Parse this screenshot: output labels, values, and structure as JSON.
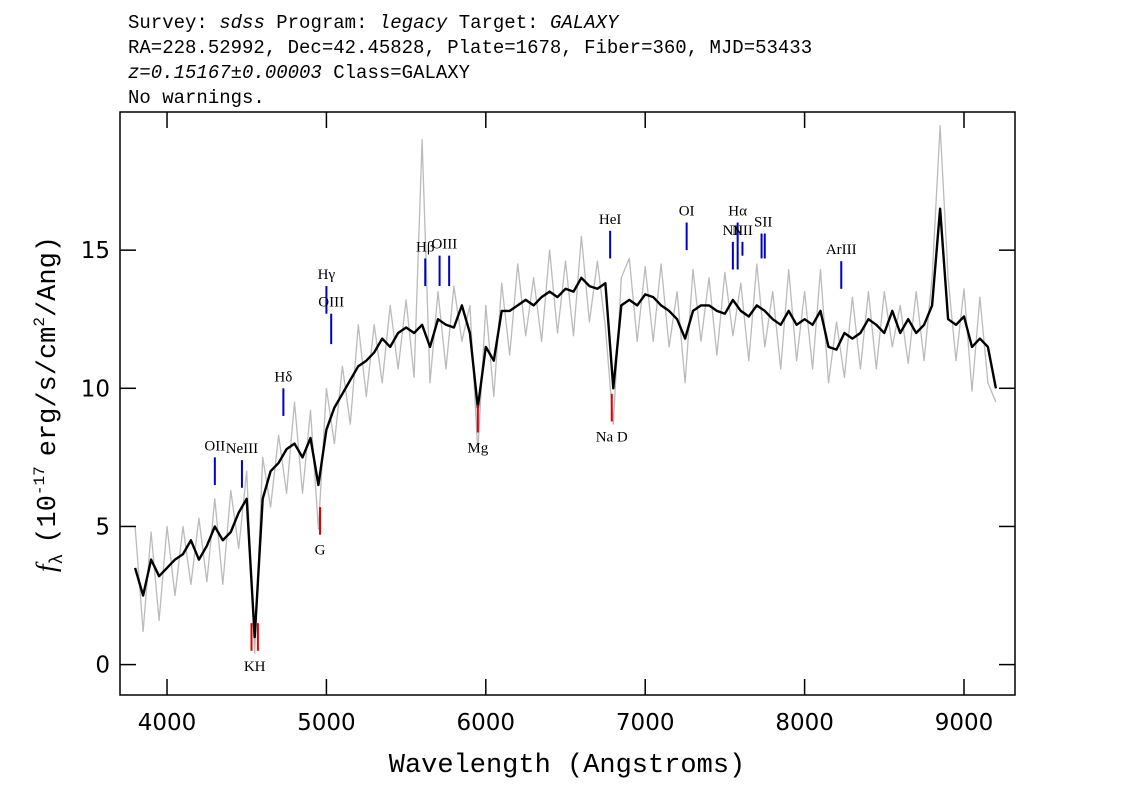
{
  "chart_data": {
    "type": "line",
    "header": {
      "line1": [
        "Survey:",
        "sdss",
        "Program:",
        "legacy",
        "Target:",
        "GALAXY"
      ],
      "line2": "RA=228.52992, Dec=42.45828, Plate=1678, Fiber=360, MJD=53433",
      "line3": [
        "z=0.15167±0.00003",
        "Class=GALAXY"
      ],
      "line4": "No warnings."
    },
    "xlabel": "Wavelength (Angstroms)",
    "ylabel": [
      "f",
      "λ",
      "(10",
      "-17",
      "erg/s/cm",
      "2",
      "/Ang)"
    ],
    "xlim": [
      3705,
      9320
    ],
    "ylim": [
      -1.1,
      20
    ],
    "xticks": [
      4000,
      5000,
      6000,
      7000,
      8000,
      9000
    ],
    "yticks": [
      0,
      5,
      10,
      15
    ],
    "x": [
      3800,
      3850,
      3900,
      3950,
      4000,
      4050,
      4100,
      4150,
      4200,
      4250,
      4300,
      4350,
      4400,
      4450,
      4500,
      4550,
      4600,
      4650,
      4700,
      4750,
      4800,
      4850,
      4900,
      4950,
      5000,
      5050,
      5100,
      5150,
      5200,
      5250,
      5300,
      5350,
      5400,
      5450,
      5500,
      5550,
      5600,
      5650,
      5700,
      5750,
      5800,
      5850,
      5900,
      5950,
      6000,
      6050,
      6100,
      6150,
      6200,
      6250,
      6300,
      6350,
      6400,
      6450,
      6500,
      6550,
      6600,
      6650,
      6700,
      6750,
      6800,
      6850,
      6900,
      6950,
      7000,
      7050,
      7100,
      7150,
      7200,
      7250,
      7300,
      7350,
      7400,
      7450,
      7500,
      7550,
      7600,
      7650,
      7700,
      7750,
      7800,
      7850,
      7900,
      7950,
      8000,
      8050,
      8100,
      8150,
      8200,
      8250,
      8300,
      8350,
      8400,
      8450,
      8500,
      8550,
      8600,
      8650,
      8700,
      8750,
      8800,
      8850,
      8900,
      8950,
      9000,
      9050,
      9100,
      9150,
      9200
    ],
    "series": [
      {
        "name": "raw",
        "color": "#bbbbbb",
        "values": [
          5.0,
          1.2,
          4.8,
          1.6,
          5.0,
          2.5,
          5.0,
          2.9,
          5.3,
          3.0,
          6.0,
          2.9,
          6.3,
          4.2,
          7.0,
          0.4,
          7.5,
          5.7,
          8.3,
          6.2,
          9.5,
          6.2,
          9.2,
          4.9,
          10.0,
          8.0,
          10.8,
          8.7,
          12.3,
          9.7,
          12.3,
          10.2,
          13.0,
          10.7,
          13.2,
          10.4,
          19.0,
          10.2,
          13.5,
          10.7,
          13.7,
          11.7,
          13.0,
          7.7,
          13.0,
          9.7,
          13.8,
          11.2,
          14.5,
          11.9,
          14.0,
          11.7,
          15.0,
          12.0,
          14.6,
          11.9,
          15.5,
          12.4,
          14.6,
          12.2,
          8.7,
          14.0,
          14.7,
          11.7,
          14.4,
          11.7,
          14.5,
          11.5,
          13.5,
          10.2,
          14.3,
          11.7,
          14.0,
          11.2,
          14.2,
          11.9,
          13.8,
          11.0,
          14.5,
          11.5,
          13.5,
          10.7,
          14.3,
          11.0,
          13.5,
          10.7,
          14.3,
          10.2,
          12.4,
          10.4,
          13.3,
          10.7,
          13.5,
          10.7,
          13.5,
          11.5,
          13.0,
          10.9,
          13.5,
          11.0,
          14.0,
          19.5,
          14.0,
          11.0,
          13.6,
          9.9,
          13.3,
          10.2,
          9.5
        ]
      },
      {
        "name": "smoothed",
        "color": "#000000",
        "values": [
          3.5,
          2.5,
          3.8,
          3.2,
          3.5,
          3.8,
          4.0,
          4.5,
          3.8,
          4.3,
          5.0,
          4.5,
          4.8,
          5.5,
          6.0,
          1.0,
          6.0,
          7.0,
          7.3,
          7.8,
          8.0,
          7.5,
          8.2,
          6.5,
          8.5,
          9.3,
          9.8,
          10.3,
          10.8,
          11.0,
          11.3,
          11.8,
          11.5,
          12.0,
          12.2,
          12.0,
          12.3,
          11.5,
          12.5,
          12.3,
          12.2,
          13.0,
          12.0,
          9.3,
          11.5,
          11.0,
          12.8,
          12.8,
          13.0,
          13.2,
          13.0,
          13.3,
          13.5,
          13.3,
          13.6,
          13.5,
          14.0,
          13.7,
          13.6,
          13.8,
          10.0,
          13.0,
          13.2,
          13.0,
          13.4,
          13.3,
          13.0,
          12.8,
          12.5,
          11.8,
          12.8,
          13.0,
          13.0,
          12.8,
          12.7,
          13.2,
          12.8,
          12.6,
          13.0,
          12.8,
          12.5,
          12.3,
          12.8,
          12.3,
          12.5,
          12.3,
          12.8,
          11.5,
          11.4,
          12.0,
          11.8,
          12.0,
          12.5,
          12.3,
          12.0,
          12.8,
          12.0,
          12.5,
          12.0,
          12.3,
          13.0,
          16.5,
          12.5,
          12.3,
          12.6,
          11.5,
          11.8,
          11.5,
          10.0
        ]
      }
    ],
    "line_markers": [
      {
        "label": "OII",
        "x": [
          4300
        ],
        "y": [
          6.5,
          7.5
        ],
        "color": "#0000cc"
      },
      {
        "label": "NeIII",
        "x": [
          4470
        ],
        "y": [
          6.4,
          7.4
        ],
        "color": "#0000cc"
      },
      {
        "label": "Hδ",
        "x": [
          4730
        ],
        "y": [
          9.0,
          10.0
        ],
        "color": "#0000cc"
      },
      {
        "label": "Hγ",
        "x": [
          5000
        ],
        "y": [
          12.7,
          13.7
        ],
        "color": "#0000cc"
      },
      {
        "label": "OIII",
        "x": [
          5030
        ],
        "y": [
          11.6,
          12.7
        ],
        "color": "#0000cc"
      },
      {
        "label": "Hβ",
        "x": [
          5620
        ],
        "y": [
          13.7,
          14.7
        ],
        "color": "#0000cc"
      },
      {
        "label": "OIII",
        "x": [
          5710,
          5770
        ],
        "y": [
          13.7,
          14.8
        ],
        "color": "#0000cc"
      },
      {
        "label": "HeI",
        "x": [
          6780
        ],
        "y": [
          14.7,
          15.7
        ],
        "color": "#0000cc"
      },
      {
        "label": "OI",
        "x": [
          7260
        ],
        "y": [
          15.0,
          16.0
        ],
        "color": "#0000cc"
      },
      {
        "label": "NII",
        "x": [
          7550
        ],
        "y": [
          14.3,
          15.3
        ],
        "color": "#0000cc"
      },
      {
        "label": "Hα",
        "x": [
          7580
        ],
        "y": [
          14.3,
          16.0
        ],
        "color": "#0000cc"
      },
      {
        "label": "NII",
        "x": [
          7610
        ],
        "y": [
          14.8,
          15.3
        ],
        "color": "#0000cc"
      },
      {
        "label": "SII",
        "x": [
          7730,
          7750
        ],
        "y": [
          14.7,
          15.6
        ],
        "color": "#0000cc"
      },
      {
        "label": "ArIII",
        "x": [
          8230
        ],
        "y": [
          13.6,
          14.6
        ],
        "color": "#0000cc"
      },
      {
        "label": "KH",
        "x": [
          4530,
          4570
        ],
        "y": [
          0.5,
          1.5
        ],
        "color": "#dd0000"
      },
      {
        "label": "G",
        "x": [
          4960
        ],
        "y": [
          4.7,
          5.7
        ],
        "color": "#dd0000"
      },
      {
        "label": "Mg",
        "x": [
          5950
        ],
        "y": [
          8.4,
          9.4
        ],
        "color": "#dd0000"
      },
      {
        "label": "Na D",
        "x": [
          6790
        ],
        "y": [
          8.8,
          9.8
        ],
        "color": "#dd0000"
      }
    ]
  }
}
